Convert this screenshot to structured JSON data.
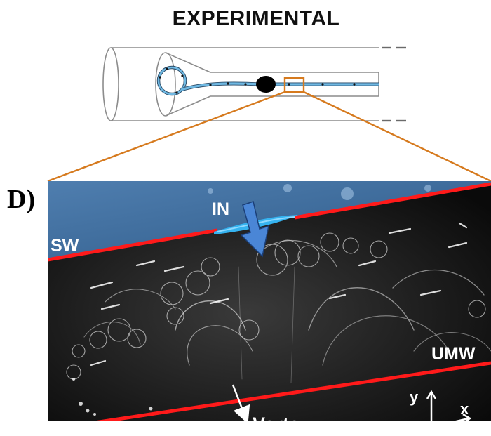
{
  "figure": {
    "title": "EXPERIMENTAL",
    "panel_label": "D)",
    "labels": {
      "inflow": "IN",
      "solid_wall": "SW",
      "upper_membrane_wall": "UMW",
      "vortex": "Vortex",
      "axis_y": "y",
      "axis_x": "x"
    }
  },
  "colors": {
    "background": "#ffffff",
    "title_text": "#111111",
    "tube_outline": "#8c8c8c",
    "fiber_blue": "#5aa9d6",
    "callout_orange": "#d67a1e",
    "wall_red": "#ff1a1a",
    "arrow_blue": "#3f7fd0",
    "micrograph_dark": "#0e0e0e",
    "upper_region_blue": "#3c6a9a",
    "label_white": "#ffffff"
  }
}
